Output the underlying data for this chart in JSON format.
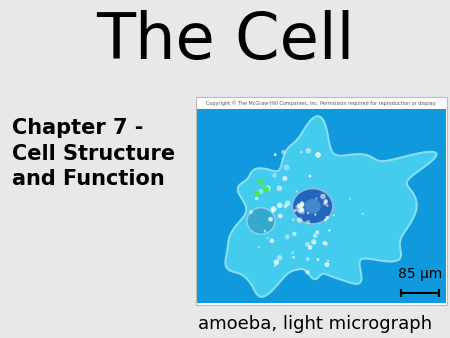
{
  "title": "The Cell",
  "subtitle_line1": "Chapter 7 -",
  "subtitle_line2": "Cell Structure",
  "subtitle_line3": "and Function",
  "caption": "amoeba, light micrograph",
  "scale_label": "85 μm",
  "bg_color": "#e8e8e8",
  "title_fontsize": 46,
  "subtitle_fontsize": 15,
  "caption_fontsize": 13,
  "copyright_text": "Copyright © The McGraw-Hill Companies, Inc. Permission required for reproduction or display.",
  "micro_bg": "#1199dd",
  "panel_bg": "#ffffff",
  "amoeba_fill": "#44ccee",
  "amoeba_edge": "#88ddee",
  "nucleus_fill": "#2266bb",
  "nucleus_edge": "#88bbdd",
  "vacuole_fill": "#33aacc",
  "vacuole_edge": "#99ccee"
}
